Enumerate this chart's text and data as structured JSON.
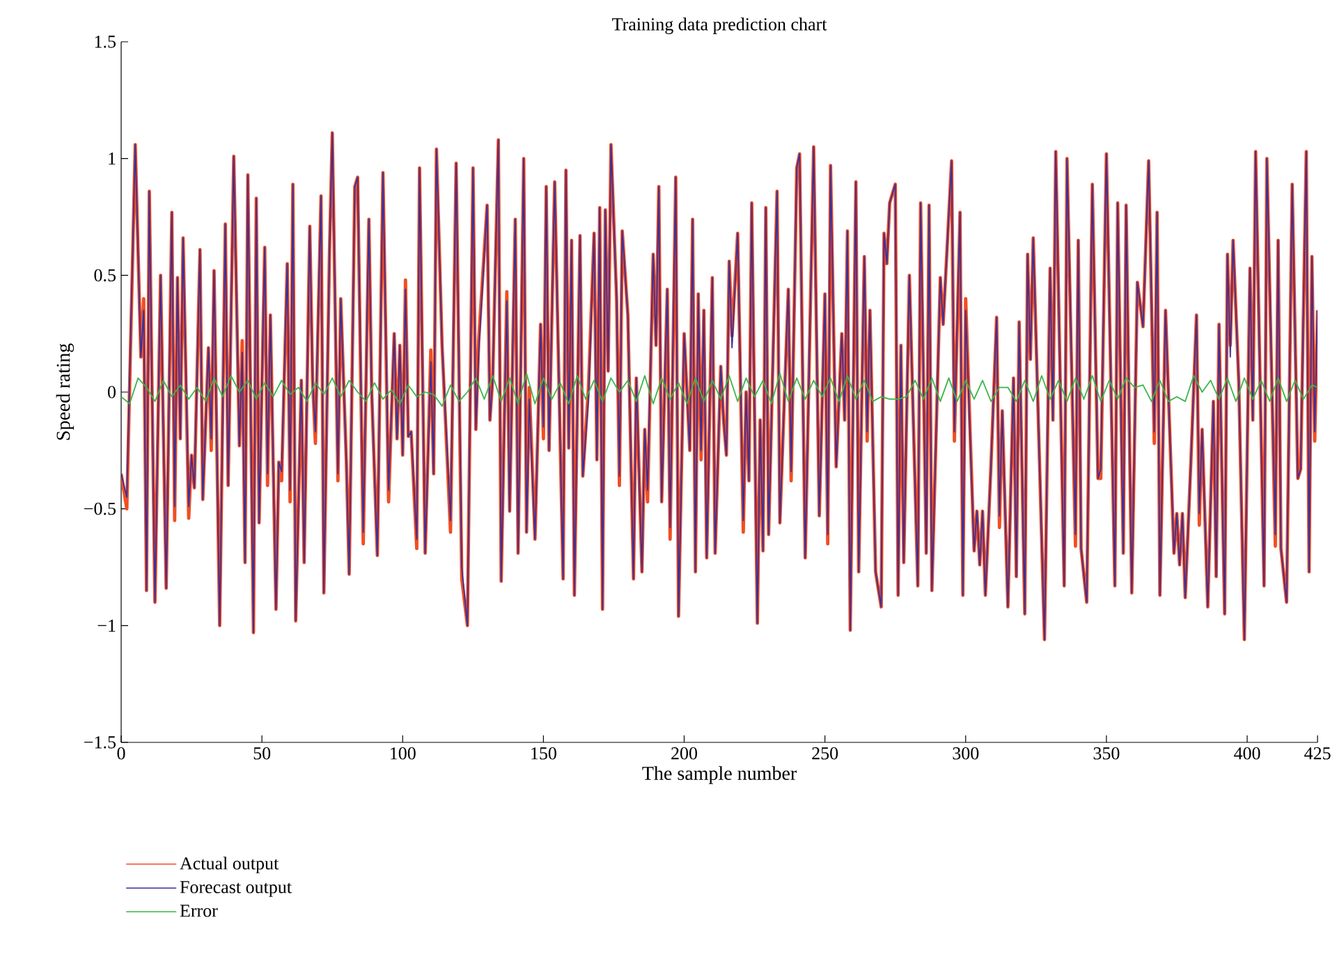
{
  "chart_data": {
    "type": "line",
    "title": "Training data prediction chart",
    "xlabel": "The sample number",
    "ylabel": "Speed rating",
    "xlim": [
      0,
      425
    ],
    "ylim": [
      -1.5,
      1.5
    ],
    "xticks": [
      0,
      50,
      100,
      150,
      200,
      250,
      300,
      350,
      400,
      425
    ],
    "yticks": [
      {
        "value": -1.5,
        "label": "−1.5"
      },
      {
        "value": -1,
        "label": "−1"
      },
      {
        "value": -0.5,
        "label": "−0.5"
      },
      0,
      0.5,
      1,
      1.5
    ],
    "legend": "bottom left",
    "x": [
      0,
      2,
      5,
      7,
      8,
      9,
      10,
      12,
      14,
      16,
      18,
      19,
      20,
      21,
      22,
      24,
      25,
      26,
      28,
      29,
      31,
      32,
      33,
      35,
      37,
      38,
      40,
      42,
      43,
      44,
      45,
      47,
      48,
      49,
      51,
      52,
      53,
      55,
      56,
      57,
      59,
      60,
      61,
      62,
      64,
      65,
      67,
      68,
      69,
      71,
      72,
      74,
      75,
      77,
      78,
      80,
      81,
      83,
      84,
      86,
      88,
      89,
      91,
      93,
      95,
      97,
      98,
      99,
      100,
      101,
      102,
      103,
      105,
      106,
      108,
      110,
      111,
      112,
      114,
      117,
      119,
      121,
      123,
      125,
      126,
      127,
      130,
      131,
      132,
      134,
      135,
      137,
      138,
      140,
      141,
      143,
      144,
      145,
      147,
      149,
      150,
      151,
      152,
      154,
      157,
      158,
      159,
      160,
      161,
      163,
      164,
      166,
      168,
      169,
      170,
      171,
      172,
      173,
      174,
      176,
      177,
      178,
      180,
      182,
      183,
      185,
      186,
      187,
      189,
      190,
      191,
      192,
      194,
      195,
      197,
      198,
      200,
      202,
      203,
      204,
      205,
      206,
      207,
      208,
      210,
      211,
      213,
      214,
      215,
      216,
      217,
      219,
      221,
      222,
      223,
      224,
      226,
      227,
      228,
      229,
      230,
      233,
      234,
      237,
      238,
      240,
      241,
      243,
      246,
      248,
      250,
      251,
      252,
      254,
      256,
      257,
      258,
      259,
      261,
      262,
      264,
      265,
      266,
      268,
      270,
      271,
      272,
      273,
      275,
      276,
      277,
      278,
      280,
      283,
      284,
      286,
      287,
      288,
      291,
      292,
      295,
      296,
      298,
      299,
      300,
      303,
      304,
      305,
      306,
      307,
      309,
      311,
      312,
      313,
      315,
      317,
      318,
      319,
      321,
      322,
      323,
      324,
      328,
      330,
      331,
      332,
      335,
      336,
      339,
      340,
      341,
      343,
      345,
      347,
      348,
      350,
      353,
      354,
      356,
      357,
      359,
      361,
      363,
      365,
      367,
      368,
      369,
      371,
      374,
      375,
      376,
      377,
      378,
      380,
      382,
      383,
      384,
      386,
      388,
      389,
      390,
      392,
      393,
      394,
      395,
      397,
      399,
      401,
      402,
      403,
      406,
      407,
      410,
      411,
      412,
      414,
      416,
      418,
      419,
      421,
      422,
      423,
      424,
      425
    ],
    "series": [
      {
        "name": "Actual output",
        "color": "#f04e23",
        "values": [
          -0.35,
          -0.5,
          1.06,
          0.15,
          0.4,
          -0.85,
          0.86,
          -0.9,
          0.5,
          -0.84,
          0.77,
          -0.55,
          0.49,
          -0.2,
          0.66,
          -0.54,
          -0.27,
          -0.41,
          0.61,
          -0.46,
          0.19,
          -0.25,
          0.52,
          -1.0,
          0.72,
          -0.4,
          1.01,
          -0.23,
          0.22,
          -0.73,
          0.93,
          -1.03,
          0.83,
          -0.56,
          0.62,
          -0.4,
          0.33,
          -0.93,
          -0.3,
          -0.38,
          0.55,
          -0.47,
          0.89,
          -0.98,
          0.05,
          -0.73,
          0.71,
          0.05,
          -0.22,
          0.84,
          -0.86,
          0.6,
          1.11,
          -0.38,
          0.4,
          -0.3,
          -0.78,
          0.88,
          0.92,
          -0.65,
          0.74,
          0.0,
          -0.7,
          0.94,
          -0.47,
          0.25,
          -0.2,
          0.2,
          -0.27,
          0.48,
          -0.19,
          -0.17,
          -0.67,
          0.96,
          -0.69,
          0.18,
          -0.35,
          1.04,
          0.2,
          -0.6,
          0.98,
          -0.8,
          -1.0,
          0.96,
          -0.16,
          0.22,
          0.8,
          -0.12,
          0.06,
          1.08,
          -0.81,
          0.43,
          -0.51,
          0.74,
          -0.69,
          1.0,
          -0.6,
          0.02,
          -0.63,
          0.29,
          -0.2,
          0.88,
          -0.25,
          0.9,
          -0.8,
          0.95,
          -0.24,
          0.65,
          -0.87,
          0.67,
          -0.36,
          0.02,
          0.68,
          -0.29,
          0.79,
          -0.93,
          0.78,
          0.09,
          1.06,
          0.4,
          -0.4,
          0.69,
          0.33,
          -0.8,
          0.06,
          -0.77,
          -0.16,
          -0.47,
          0.59,
          0.2,
          0.88,
          -0.47,
          0.44,
          -0.63,
          0.92,
          -0.96,
          0.25,
          -0.25,
          0.74,
          -0.77,
          0.42,
          -0.29,
          0.35,
          -0.71,
          0.49,
          -0.69,
          0.11,
          -0.12,
          -0.27,
          0.56,
          0.24,
          0.68,
          -0.6,
          0.0,
          -0.38,
          0.81,
          -0.99,
          -0.12,
          -0.68,
          0.79,
          -0.61,
          0.86,
          -0.56,
          0.44,
          -0.38,
          0.96,
          1.02,
          -0.71,
          1.05,
          -0.53,
          0.42,
          -0.65,
          0.97,
          -0.32,
          0.25,
          -0.12,
          0.69,
          -1.02,
          0.9,
          -0.77,
          0.58,
          -0.21,
          0.35,
          -0.77,
          -0.92,
          0.68,
          0.55,
          0.81,
          0.89,
          -0.87,
          0.2,
          -0.73,
          0.5,
          -0.83,
          0.81,
          -0.69,
          0.8,
          -0.85,
          0.49,
          0.29,
          0.99,
          -0.21,
          0.77,
          -0.87,
          0.4,
          -0.68,
          -0.51,
          -0.74,
          -0.51,
          -0.87,
          -0.31,
          0.32,
          -0.58,
          -0.08,
          -0.92,
          0.06,
          -0.79,
          0.3,
          -0.95,
          0.59,
          0.14,
          0.66,
          -1.06,
          0.53,
          -0.12,
          1.03,
          -0.83,
          1.0,
          -0.66,
          0.65,
          -0.67,
          -0.9,
          0.89,
          -0.37,
          -0.37,
          1.02,
          -0.83,
          0.81,
          -0.69,
          0.8,
          -0.86,
          0.47,
          0.28,
          0.99,
          -0.22,
          0.77,
          -0.87,
          0.35,
          -0.69,
          -0.52,
          -0.74,
          -0.52,
          -0.88,
          -0.3,
          0.33,
          -0.57,
          -0.16,
          -0.92,
          -0.04,
          -0.79,
          0.29,
          -0.95,
          0.59,
          0.2,
          0.65,
          0.05,
          -1.06,
          0.53,
          -0.12,
          1.03,
          -0.83,
          1.0,
          -0.66,
          0.65,
          -0.67,
          -0.9,
          0.89,
          -0.37,
          -0.33,
          1.03,
          -0.77,
          0.58,
          -0.21,
          0.35
        ]
      },
      {
        "name": "Forecast output",
        "color": "#3a2f9a",
        "values": [
          -0.35,
          -0.45,
          1.06,
          0.15,
          0.35,
          -0.85,
          0.86,
          -0.9,
          0.5,
          -0.84,
          0.77,
          -0.49,
          0.49,
          -0.2,
          0.66,
          -0.49,
          -0.27,
          -0.41,
          0.61,
          -0.46,
          0.19,
          -0.2,
          0.52,
          -1.0,
          0.72,
          -0.4,
          1.01,
          -0.23,
          0.17,
          -0.73,
          0.93,
          -1.03,
          0.83,
          -0.56,
          0.62,
          -0.35,
          0.33,
          -0.93,
          -0.3,
          -0.34,
          0.55,
          -0.42,
          0.89,
          -0.98,
          0.05,
          -0.73,
          0.71,
          0.05,
          -0.17,
          0.84,
          -0.86,
          0.6,
          1.11,
          -0.35,
          0.4,
          -0.3,
          -0.78,
          0.88,
          0.92,
          -0.6,
          0.74,
          0.0,
          -0.7,
          0.94,
          -0.42,
          0.25,
          -0.2,
          0.2,
          -0.27,
          0.44,
          -0.19,
          -0.17,
          -0.63,
          0.96,
          -0.69,
          0.13,
          -0.35,
          1.04,
          0.2,
          -0.55,
          0.98,
          -0.75,
          -1.0,
          0.96,
          -0.16,
          0.17,
          0.8,
          -0.12,
          0.06,
          1.08,
          -0.81,
          0.39,
          -0.51,
          0.74,
          -0.69,
          1.0,
          -0.6,
          -0.03,
          -0.63,
          0.29,
          -0.15,
          0.88,
          -0.25,
          0.9,
          -0.8,
          0.95,
          -0.24,
          0.65,
          -0.87,
          0.67,
          -0.36,
          -0.03,
          0.68,
          -0.29,
          0.79,
          -0.93,
          0.78,
          0.09,
          1.06,
          0.4,
          -0.36,
          0.69,
          0.33,
          -0.8,
          0.06,
          -0.77,
          -0.16,
          -0.42,
          0.59,
          0.2,
          0.88,
          -0.47,
          0.44,
          -0.58,
          0.92,
          -0.96,
          0.25,
          -0.25,
          0.74,
          -0.77,
          0.42,
          -0.25,
          0.35,
          -0.71,
          0.49,
          -0.69,
          0.11,
          -0.12,
          -0.27,
          0.56,
          0.19,
          0.68,
          -0.55,
          0.0,
          -0.38,
          0.81,
          -0.99,
          -0.12,
          -0.68,
          0.79,
          -0.61,
          0.86,
          -0.56,
          0.44,
          -0.34,
          0.96,
          1.02,
          -0.71,
          1.05,
          -0.53,
          0.42,
          -0.61,
          0.97,
          -0.32,
          0.25,
          -0.12,
          0.69,
          -1.02,
          0.9,
          -0.77,
          0.58,
          -0.17,
          0.35,
          -0.77,
          -0.92,
          0.68,
          0.55,
          0.81,
          0.89,
          -0.87,
          0.2,
          -0.73,
          0.5,
          -0.83,
          0.81,
          -0.69,
          0.8,
          -0.85,
          0.49,
          0.29,
          0.99,
          -0.17,
          0.77,
          -0.87,
          0.35,
          -0.68,
          -0.51,
          -0.74,
          -0.51,
          -0.87,
          -0.31,
          0.32,
          -0.53,
          -0.08,
          -0.92,
          0.06,
          -0.79,
          0.3,
          -0.95,
          0.59,
          0.14,
          0.66,
          -1.06,
          0.53,
          -0.12,
          1.03,
          -0.83,
          1.0,
          -0.61,
          0.65,
          -0.67,
          -0.9,
          0.89,
          -0.37,
          -0.33,
          1.02,
          -0.83,
          0.81,
          -0.69,
          0.8,
          -0.86,
          0.47,
          0.28,
          0.99,
          -0.17,
          0.77,
          -0.87,
          0.35,
          -0.69,
          -0.52,
          -0.74,
          -0.52,
          -0.88,
          -0.3,
          0.33,
          -0.52,
          -0.16,
          -0.92,
          -0.04,
          -0.79,
          0.29,
          -0.95,
          0.59,
          0.15,
          0.65,
          0.05,
          -1.06,
          0.53,
          -0.12,
          1.03,
          -0.83,
          1.0,
          -0.61,
          0.65,
          -0.67,
          -0.9,
          0.89,
          -0.37,
          -0.33,
          1.03,
          -0.77,
          0.58,
          -0.17,
          0.35
        ]
      },
      {
        "name": "Error",
        "color": "#3ab54a",
        "x": [
          0,
          3,
          6,
          9,
          12,
          15,
          18,
          21,
          24,
          27,
          30,
          33,
          36,
          39,
          42,
          45,
          48,
          51,
          54,
          57,
          60,
          63,
          66,
          69,
          72,
          75,
          78,
          81,
          84,
          87,
          90,
          93,
          96,
          99,
          102,
          105,
          108,
          111,
          114,
          117,
          120,
          123,
          126,
          129,
          132,
          135,
          138,
          141,
          144,
          147,
          150,
          153,
          156,
          159,
          162,
          165,
          168,
          171,
          174,
          177,
          180,
          183,
          186,
          189,
          192,
          195,
          198,
          201,
          204,
          207,
          210,
          213,
          216,
          219,
          222,
          225,
          228,
          231,
          234,
          237,
          240,
          243,
          246,
          249,
          252,
          255,
          258,
          261,
          264,
          267,
          270,
          273,
          276,
          279,
          282,
          285,
          288,
          291,
          294,
          297,
          300,
          303,
          306,
          309,
          312,
          315,
          318,
          321,
          324,
          327,
          330,
          333,
          336,
          339,
          342,
          345,
          348,
          351,
          354,
          357,
          360,
          363,
          366,
          369,
          372,
          375,
          378,
          381,
          384,
          387,
          390,
          393,
          396,
          399,
          402,
          405,
          408,
          411,
          414,
          417,
          420,
          423,
          425
        ],
        "values": [
          -0.02,
          -0.05,
          0.06,
          0.02,
          -0.04,
          0.05,
          -0.02,
          0.03,
          -0.03,
          0.02,
          -0.04,
          0.06,
          -0.02,
          0.07,
          0.0,
          0.05,
          -0.03,
          0.04,
          -0.02,
          0.05,
          -0.01,
          0.02,
          -0.04,
          0.04,
          -0.01,
          0.06,
          -0.02,
          0.05,
          0.0,
          -0.04,
          0.04,
          -0.03,
          0.01,
          -0.05,
          0.03,
          -0.02,
          0.0,
          -0.01,
          -0.06,
          0.03,
          -0.04,
          0.0,
          0.06,
          -0.03,
          0.07,
          -0.04,
          0.06,
          -0.05,
          0.08,
          -0.05,
          0.06,
          -0.03,
          0.04,
          -0.05,
          0.07,
          -0.03,
          0.05,
          -0.04,
          0.06,
          0.0,
          0.05,
          -0.04,
          0.07,
          -0.05,
          0.06,
          -0.03,
          0.04,
          -0.05,
          0.06,
          -0.04,
          0.05,
          -0.03,
          0.07,
          -0.04,
          0.06,
          -0.02,
          0.05,
          -0.05,
          0.08,
          -0.04,
          0.06,
          -0.03,
          0.05,
          -0.02,
          0.06,
          -0.04,
          0.07,
          -0.03,
          0.05,
          -0.04,
          -0.02,
          -0.03,
          -0.03,
          -0.02,
          0.05,
          -0.03,
          0.06,
          -0.04,
          0.06,
          -0.04,
          0.05,
          -0.03,
          0.05,
          -0.04,
          0.02,
          0.02,
          -0.04,
          0.05,
          -0.04,
          0.07,
          -0.03,
          0.05,
          -0.04,
          0.06,
          -0.03,
          0.07,
          -0.04,
          0.05,
          -0.03,
          0.06,
          0.02,
          0.03,
          -0.04,
          0.05,
          -0.04,
          -0.02,
          -0.04,
          0.07,
          0.0,
          0.05,
          -0.03,
          0.06,
          -0.04,
          0.06,
          -0.03,
          0.05,
          -0.04,
          0.06,
          -0.04,
          0.05,
          -0.03,
          0.03,
          0.02
        ]
      }
    ]
  }
}
